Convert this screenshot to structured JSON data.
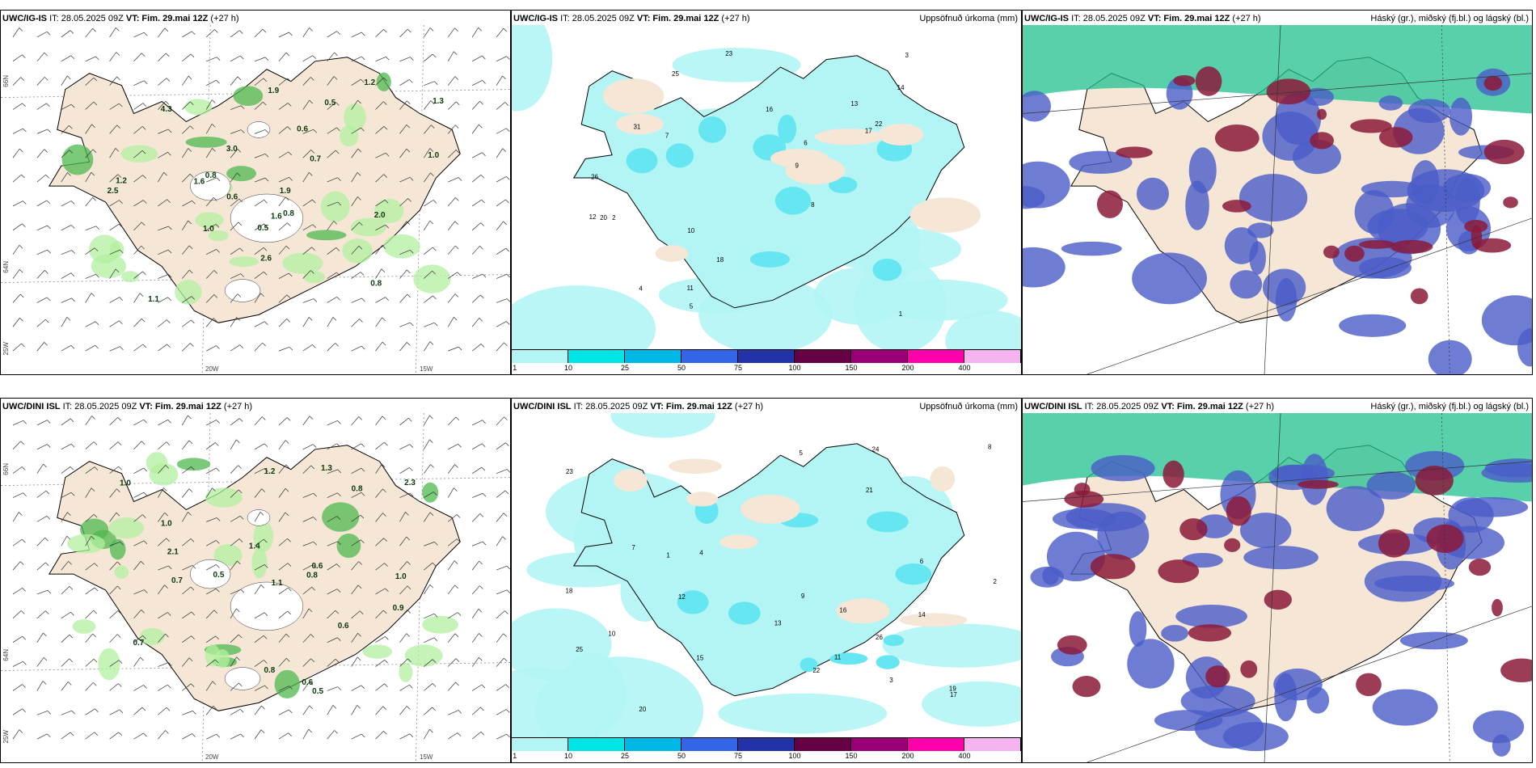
{
  "panels": [
    {
      "id": "p1",
      "model": "UWC/IG-IS",
      "it": "IT: 28.05.2025 09Z",
      "vt": "VT: Fim. 29.mai 12Z",
      "lead": "(+27 h)",
      "right": "",
      "type": "wind"
    },
    {
      "id": "p2",
      "model": "UWC/IG-IS",
      "it": "IT: 28.05.2025 09Z",
      "vt": "VT: Fim. 29.mai 12Z",
      "lead": "(+27 h)",
      "right": "Uppsöfnuð úrkoma (mm)",
      "type": "precip"
    },
    {
      "id": "p3",
      "model": "UWC/IG-IS",
      "it": "IT: 28.05.2025 09Z",
      "vt": "VT: Fim. 29.mai 12Z",
      "lead": "(+27 h)",
      "right": "Háský (gr.), miðský (fj.bl.) og lágský (bl.)",
      "type": "cloud"
    },
    {
      "id": "p4",
      "model": "UWC/DINI ISL",
      "it": "IT: 28.05.2025 09Z",
      "vt": "VT: Fim. 29.mai 12Z",
      "lead": "(+27 h)",
      "right": "",
      "type": "wind"
    },
    {
      "id": "p5",
      "model": "UWC/DINI ISL",
      "it": "IT: 28.05.2025 09Z",
      "vt": "VT: Fim. 29.mai 12Z",
      "lead": "(+27 h)",
      "right": "Uppsöfnuð úrkoma (mm)",
      "type": "precip"
    },
    {
      "id": "p6",
      "model": "UWC/DINI ISL",
      "it": "IT: 28.05.2025 09Z",
      "vt": "VT: Fim. 29.mai 12Z",
      "lead": "(+27 h)",
      "right": "Háský (gr.), miðský (fj.bl.) og lágský (bl.)",
      "type": "cloud"
    }
  ],
  "axis_labels": {
    "lat_66": "66N",
    "lat_64": "64N",
    "lon_25": "25W",
    "lon_20": "20W",
    "lon_15": "15W"
  },
  "legend": {
    "ticks": [
      "1",
      "10",
      "25",
      "50",
      "75",
      "100",
      "150",
      "200",
      "400"
    ],
    "colors": [
      "#b3f5f5",
      "#00e6e6",
      "#00b8e6",
      "#3366e6",
      "#2233aa",
      "#660044",
      "#990077",
      "#ff00aa",
      "#f5b3f0"
    ]
  },
  "colors": {
    "land": "#f5e6d6",
    "coast": "#000000",
    "precip_light": "#b3f5f5",
    "precip_mid": "#66e6f0",
    "green_light": "#b3f0a0",
    "green_dark": "#4db84d",
    "cloud_low": "#4a5cc8",
    "cloud_mid": "#8b1a3a",
    "cloud_high": "#20c090"
  },
  "p1_values": [
    "1.0",
    "0.5",
    "1.2",
    "0.8",
    "0.6",
    "1.1",
    "0.7",
    "0.8",
    "2.0",
    "1.2",
    "0.5",
    "1.0",
    "0.6",
    "1.9",
    "2.5",
    "3.0",
    "1.3",
    "0.8",
    "1.6",
    "4.3",
    "2.6",
    "1.6",
    "1.9"
  ],
  "p2_values": [
    "1",
    "2",
    "3",
    "4",
    "5",
    "6",
    "7",
    "8",
    "9",
    "10",
    "11",
    "12",
    "13",
    "14",
    "16",
    "17",
    "18",
    "20",
    "22",
    "23",
    "25",
    "26",
    "31"
  ],
  "p4_values": [
    "0.6",
    "0.8",
    "0.5",
    "1.0",
    "0.7",
    "0.6",
    "0.5",
    "0.8",
    "1.4",
    "1.2",
    "0.9",
    "1.1",
    "0.6",
    "1.3",
    "0.7",
    "1.0",
    "2.1",
    "0.8",
    "1.0",
    "2.3"
  ],
  "p5_values": [
    "1",
    "2",
    "3",
    "4",
    "5",
    "6",
    "7",
    "8",
    "9",
    "10",
    "11",
    "12",
    "13",
    "14",
    "15",
    "16",
    "17",
    "18",
    "19",
    "20",
    "21",
    "22",
    "23",
    "24",
    "25",
    "26"
  ]
}
